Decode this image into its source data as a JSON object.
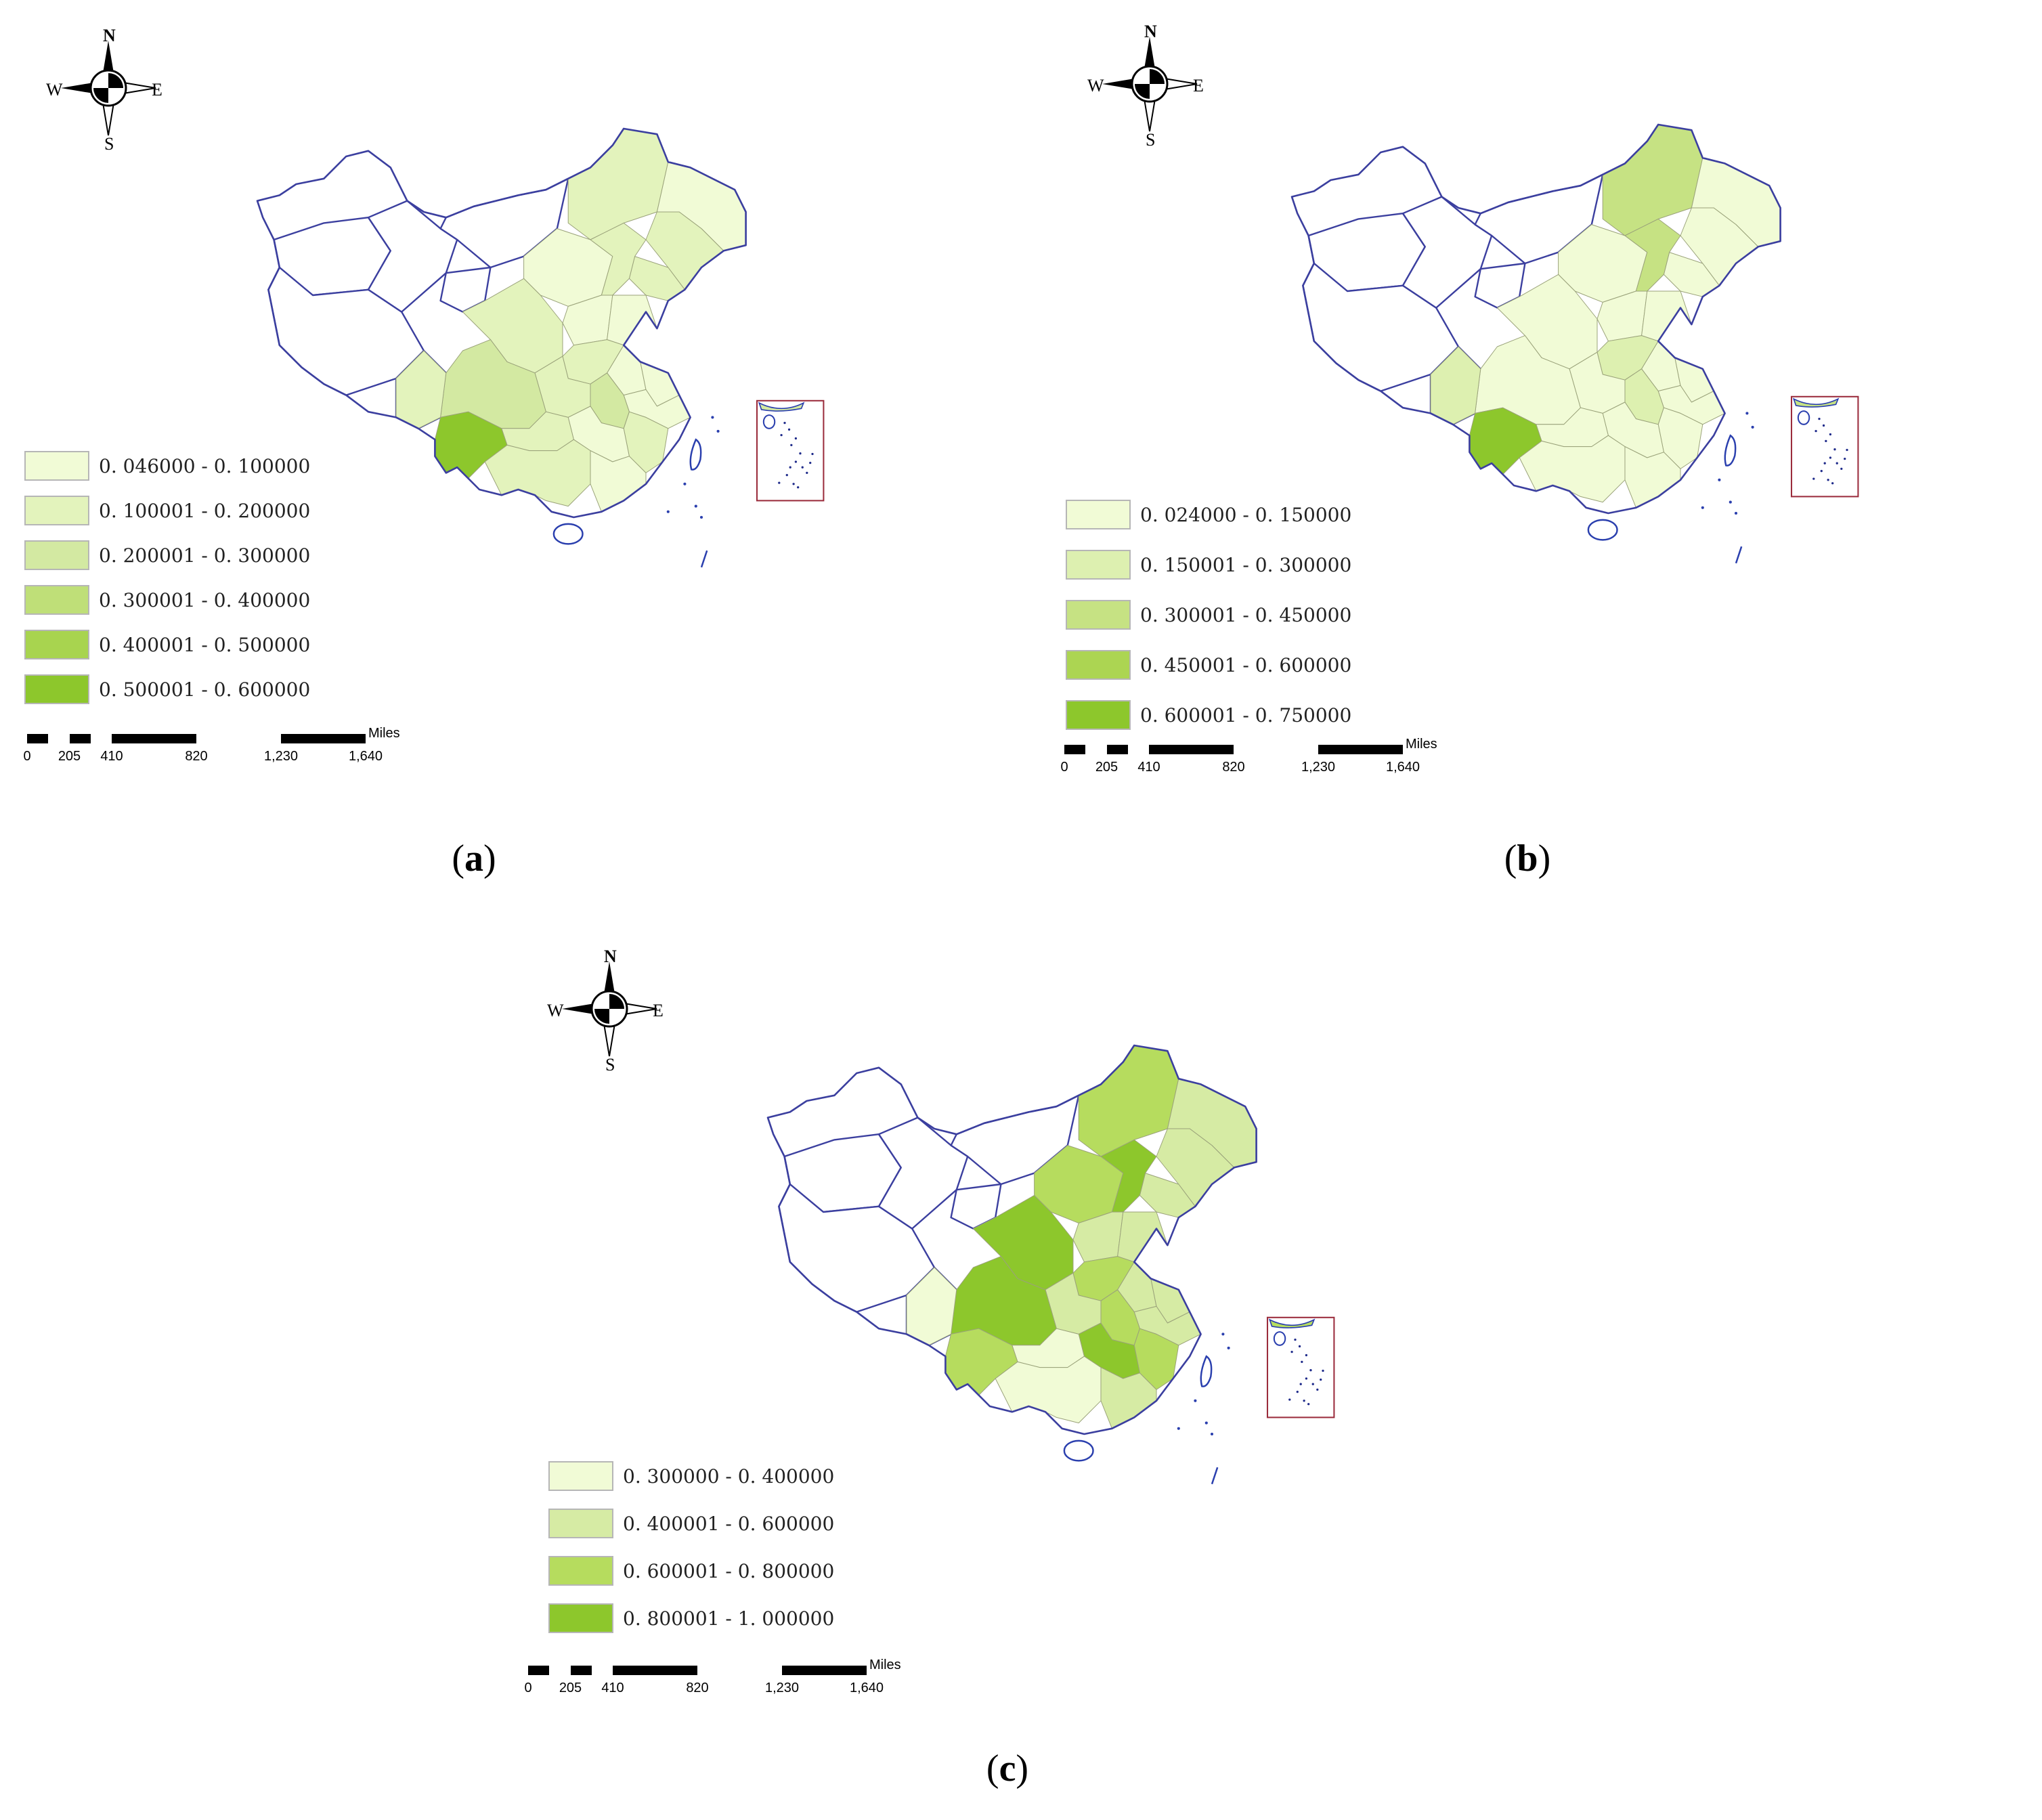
{
  "compass": {
    "n": "N",
    "s": "S",
    "e": "E",
    "w": "W",
    "icon": "north-arrow-compass"
  },
  "scale": {
    "unit": "Miles",
    "ticks": [
      "0",
      "205",
      "410",
      "820",
      "1,230",
      "1,640"
    ]
  },
  "colors": {
    "outline": "#3b3f9f",
    "inset_frame": "#9b2c3c",
    "c1": "#f1fbd6",
    "c2": "#e0f2b4",
    "c3": "#cfe79a",
    "c4": "#badd6a",
    "c5": "#a3d24a",
    "c6": "#8dc72c"
  },
  "panels": [
    {
      "id": "a",
      "caption_letter": "a",
      "legend": [
        {
          "label": "0. 046000 - 0. 100000",
          "color": "#f1fbd6"
        },
        {
          "label": "0. 100001 - 0. 200000",
          "color": "#e3f3bc"
        },
        {
          "label": "0. 200001 - 0. 300000",
          "color": "#d3e9a2"
        },
        {
          "label": "0. 300001 - 0. 400000",
          "color": "#bfdf78"
        },
        {
          "label": "0. 400001 - 0. 500000",
          "color": "#a8d44f"
        },
        {
          "label": "0. 500001 - 0. 600000",
          "color": "#8dc72c"
        }
      ]
    },
    {
      "id": "b",
      "caption_letter": "b",
      "legend": [
        {
          "label": "0. 024000 - 0. 150000",
          "color": "#f1fbd6"
        },
        {
          "label": "0. 150001 - 0. 300000",
          "color": "#ddf0b0"
        },
        {
          "label": "0. 300001 - 0. 450000",
          "color": "#c6e283"
        },
        {
          "label": "0. 450001 - 0. 600000",
          "color": "#acd552"
        },
        {
          "label": "0. 600001 - 0. 750000",
          "color": "#8dc72c"
        }
      ]
    },
    {
      "id": "c",
      "caption_letter": "c",
      "legend": [
        {
          "label": "0. 300000 - 0. 400000",
          "color": "#f1fbd6"
        },
        {
          "label": "0. 400001 - 0. 600000",
          "color": "#d6eba4"
        },
        {
          "label": "0. 600001 - 0. 800000",
          "color": "#b6dc5e"
        },
        {
          "label": "0. 800001 - 1. 000000",
          "color": "#8dc72c"
        }
      ]
    }
  ]
}
